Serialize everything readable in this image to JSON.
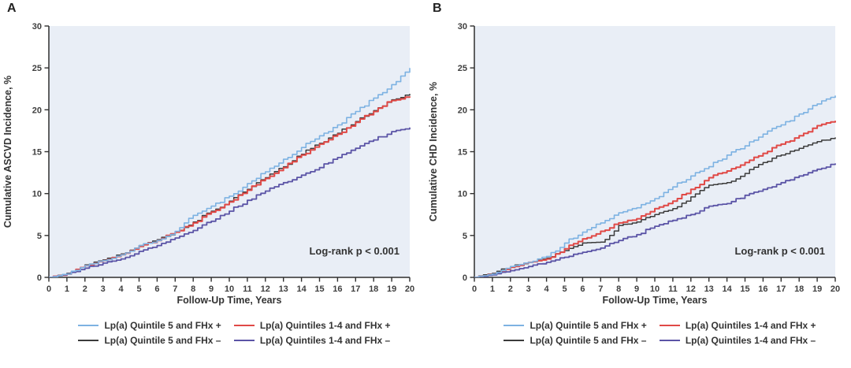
{
  "figure": {
    "background": "#ffffff"
  },
  "chart_data": [
    {
      "type": "line",
      "line_style": "step",
      "panel_label": "A",
      "xlabel": "Follow-Up Time, Years",
      "ylabel": "Cumulative ASCVD Incidence, %",
      "annotation": "Log-rank p < 0.001",
      "xlim": [
        0,
        20
      ],
      "ylim": [
        0,
        30
      ],
      "xticks": [
        0,
        1,
        2,
        3,
        4,
        5,
        6,
        7,
        8,
        9,
        10,
        11,
        12,
        13,
        14,
        15,
        16,
        17,
        18,
        19,
        20
      ],
      "yticks": [
        0,
        5,
        10,
        15,
        20,
        25,
        30
      ],
      "grid": false,
      "legend_position": "bottom",
      "plot_bg": "#e9eef6",
      "axis_color": "#2f2f2f",
      "x": [
        0,
        1,
        2,
        3,
        4,
        5,
        6,
        7,
        8,
        9,
        10,
        11,
        12,
        13,
        14,
        15,
        16,
        17,
        18,
        19,
        20
      ],
      "series": [
        {
          "name": "Lp(a) Quintile 5 and FHx +",
          "color": "#7db2e2",
          "values": [
            0,
            0.4,
            1.4,
            2.0,
            2.7,
            3.8,
            4.4,
            5.5,
            7.4,
            8.5,
            9.7,
            11.2,
            12.6,
            14.1,
            15.5,
            16.9,
            18.2,
            19.8,
            21.4,
            23.0,
            25.0
          ]
        },
        {
          "name": "Lp(a) Quintiles 1-4 and FHx +",
          "color": "#e04946",
          "values": [
            0,
            0.4,
            1.4,
            2.0,
            2.7,
            3.7,
            4.4,
            5.4,
            6.5,
            7.8,
            9.0,
            10.4,
            11.8,
            13.1,
            14.6,
            15.9,
            17.1,
            18.5,
            19.8,
            21.1,
            21.6
          ]
        },
        {
          "name": "Lp(a) Quintile 5 and FHx –",
          "color": "#3b3b3b",
          "values": [
            0,
            0.5,
            1.5,
            2.1,
            2.8,
            3.8,
            4.5,
            5.4,
            6.6,
            7.9,
            9.1,
            10.5,
            11.9,
            13.2,
            14.7,
            16.0,
            17.2,
            18.6,
            19.9,
            21.2,
            21.9
          ]
        },
        {
          "name": "Lp(a) Quintiles 1-4 and FHx –",
          "color": "#5b54a6",
          "values": [
            0,
            0.4,
            1.1,
            1.7,
            2.2,
            3.1,
            3.8,
            4.7,
            5.6,
            6.7,
            7.9,
            9.2,
            10.3,
            11.3,
            12.2,
            13.1,
            14.3,
            15.4,
            16.4,
            17.4,
            17.9
          ]
        }
      ]
    },
    {
      "type": "line",
      "line_style": "step",
      "panel_label": "B",
      "xlabel": "Follow-Up Time, Years",
      "ylabel": "Cumulative CHD Incidence, %",
      "annotation": "Log-rank p < 0.001",
      "xlim": [
        0,
        20
      ],
      "ylim": [
        0,
        30
      ],
      "xticks": [
        0,
        1,
        2,
        3,
        4,
        5,
        6,
        7,
        8,
        9,
        10,
        11,
        12,
        13,
        14,
        15,
        16,
        17,
        18,
        19,
        20
      ],
      "yticks": [
        0,
        5,
        10,
        15,
        20,
        25,
        30
      ],
      "grid": false,
      "legend_position": "bottom",
      "plot_bg": "#e9eef6",
      "axis_color": "#2f2f2f",
      "x": [
        0,
        1,
        2,
        3,
        4,
        5,
        6,
        7,
        8,
        9,
        10,
        11,
        12,
        13,
        14,
        15,
        16,
        17,
        18,
        19,
        20
      ],
      "series": [
        {
          "name": "Lp(a) Quintile 5 and FHx +",
          "color": "#7db2e2",
          "values": [
            0,
            0.4,
            1.3,
            1.8,
            2.5,
            4.1,
            5.4,
            6.5,
            7.7,
            8.3,
            9.4,
            10.8,
            12.1,
            13.2,
            14.6,
            15.7,
            17.1,
            18.2,
            19.5,
            20.7,
            21.7
          ]
        },
        {
          "name": "Lp(a) Quintiles 1-4 and FHx +",
          "color": "#e04946",
          "values": [
            0,
            0.4,
            1.2,
            1.8,
            2.2,
            3.4,
            4.6,
            5.5,
            6.5,
            7.0,
            8.2,
            9.1,
            10.5,
            11.9,
            12.7,
            13.7,
            14.8,
            15.9,
            16.9,
            18.1,
            18.7
          ]
        },
        {
          "name": "Lp(a) Quintile 5 and FHx –",
          "color": "#3b3b3b",
          "values": [
            0,
            0.5,
            1.3,
            1.8,
            2.3,
            3.2,
            4.1,
            4.2,
            6.2,
            6.6,
            7.5,
            8.2,
            9.6,
            11.0,
            11.3,
            12.4,
            13.7,
            14.6,
            15.4,
            16.2,
            16.7
          ]
        },
        {
          "name": "Lp(a) Quintiles 1-4 and FHx –",
          "color": "#5b54a6",
          "values": [
            0,
            0.3,
            0.8,
            1.3,
            1.8,
            2.4,
            3.0,
            3.5,
            4.4,
            5.1,
            6.1,
            6.8,
            7.5,
            8.5,
            8.8,
            9.8,
            10.5,
            11.3,
            12.1,
            12.9,
            13.6
          ]
        }
      ]
    }
  ]
}
